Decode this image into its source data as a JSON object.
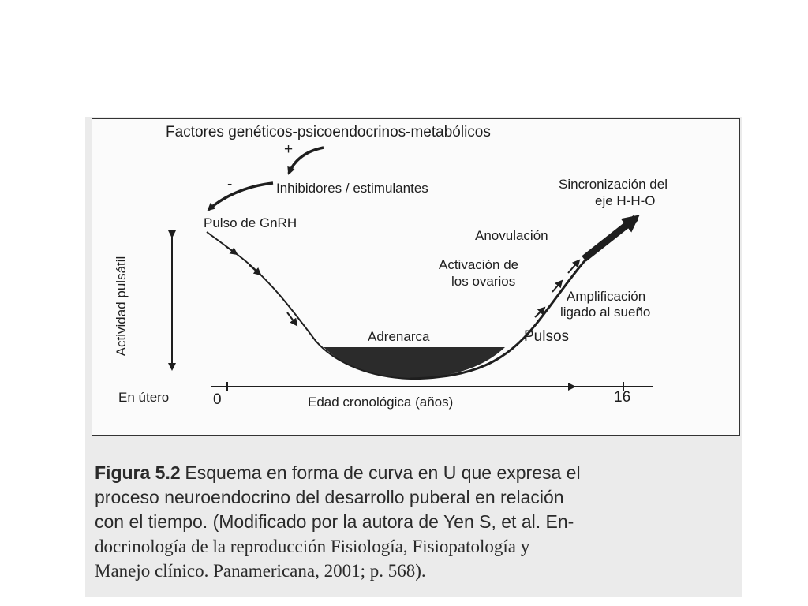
{
  "diagram": {
    "top_factors": "Factores genéticos-psicoendocrinos-metabólicos",
    "plus_sign": "+",
    "minus_sign": "-",
    "inhibitors": "Inhibidores / estimulantes",
    "gnrh_pulse": "Pulso de GnRH",
    "y_axis_label": "Actividad pulsátil",
    "synchronization_line1": "Sincronización del",
    "synchronization_line2": "eje H-H-O",
    "anovulation": "Anovulación",
    "ovary_activation_line1": "Activación de",
    "ovary_activation_line2": "los ovarios",
    "amplification_line1": "Amplificación",
    "amplification_line2": "ligado al sueño",
    "adrenarche": "Adrenarca",
    "pulses": "Pulsos",
    "in_utero": "En útero",
    "x_start": "0",
    "x_axis_label": "Edad cronológica (años)",
    "x_end": "16"
  },
  "caption": {
    "title": "Figura 5.2",
    "line1_rest": "Esquema en forma de curva en U que expresa el",
    "line2": "proceso neuroendocrino del desarrollo puberal en relación",
    "line3": "con el tiempo. (Modificado por la autora de Yen S, et al. En-",
    "line4": "docrinología de la reproducción Fisiología, Fisiopatología y",
    "line5": "Manejo clínico. Panamericana, 2001; p. 568)."
  },
  "colors": {
    "ink": "#1e1e1e",
    "fill": "#2b2b2b",
    "paper": "#fbfbfb",
    "scan": "#ebebeb"
  }
}
